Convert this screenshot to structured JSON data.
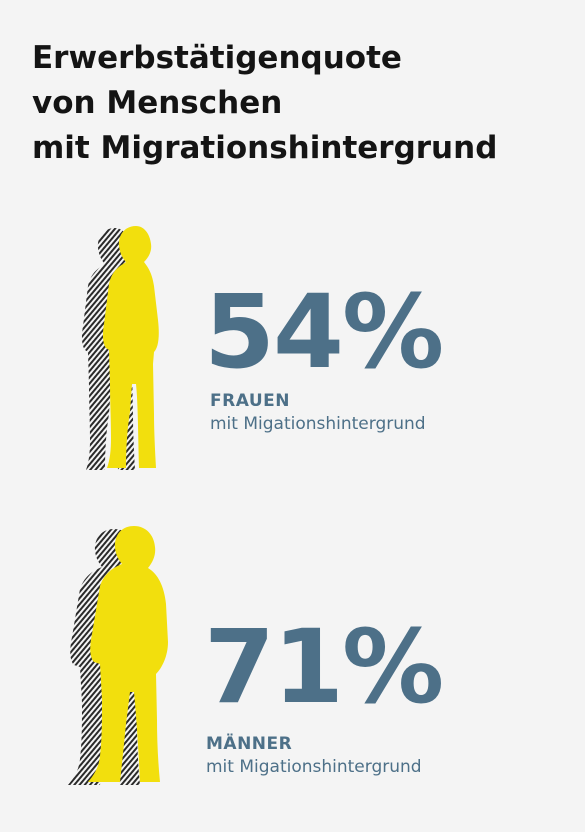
{
  "title_lines": [
    "Erwerbstätigenquote",
    "von Menschen",
    "mit Migrationshintergrund"
  ],
  "colors": {
    "figure": "#f2df0d",
    "number": "#4d7088",
    "label": "#4d7088",
    "title": "#141414"
  },
  "chart_data": {
    "type": "pictogram",
    "title": "Erwerbstätigenquote von Menschen mit Migrationshintergrund",
    "unit": "%",
    "categories": [
      "FRAUEN",
      "MÄNNER"
    ],
    "values": [
      54,
      71
    ],
    "items": [
      {
        "value": 54,
        "value_label": "54%",
        "category": "FRAUEN",
        "sublabel": "mit Migationshintergrund",
        "icon": "woman-silhouette-icon"
      },
      {
        "value": 71,
        "value_label": "71%",
        "category": "MÄNNER",
        "sublabel": "mit Migationshintergrund",
        "icon": "man-silhouette-icon"
      }
    ]
  }
}
